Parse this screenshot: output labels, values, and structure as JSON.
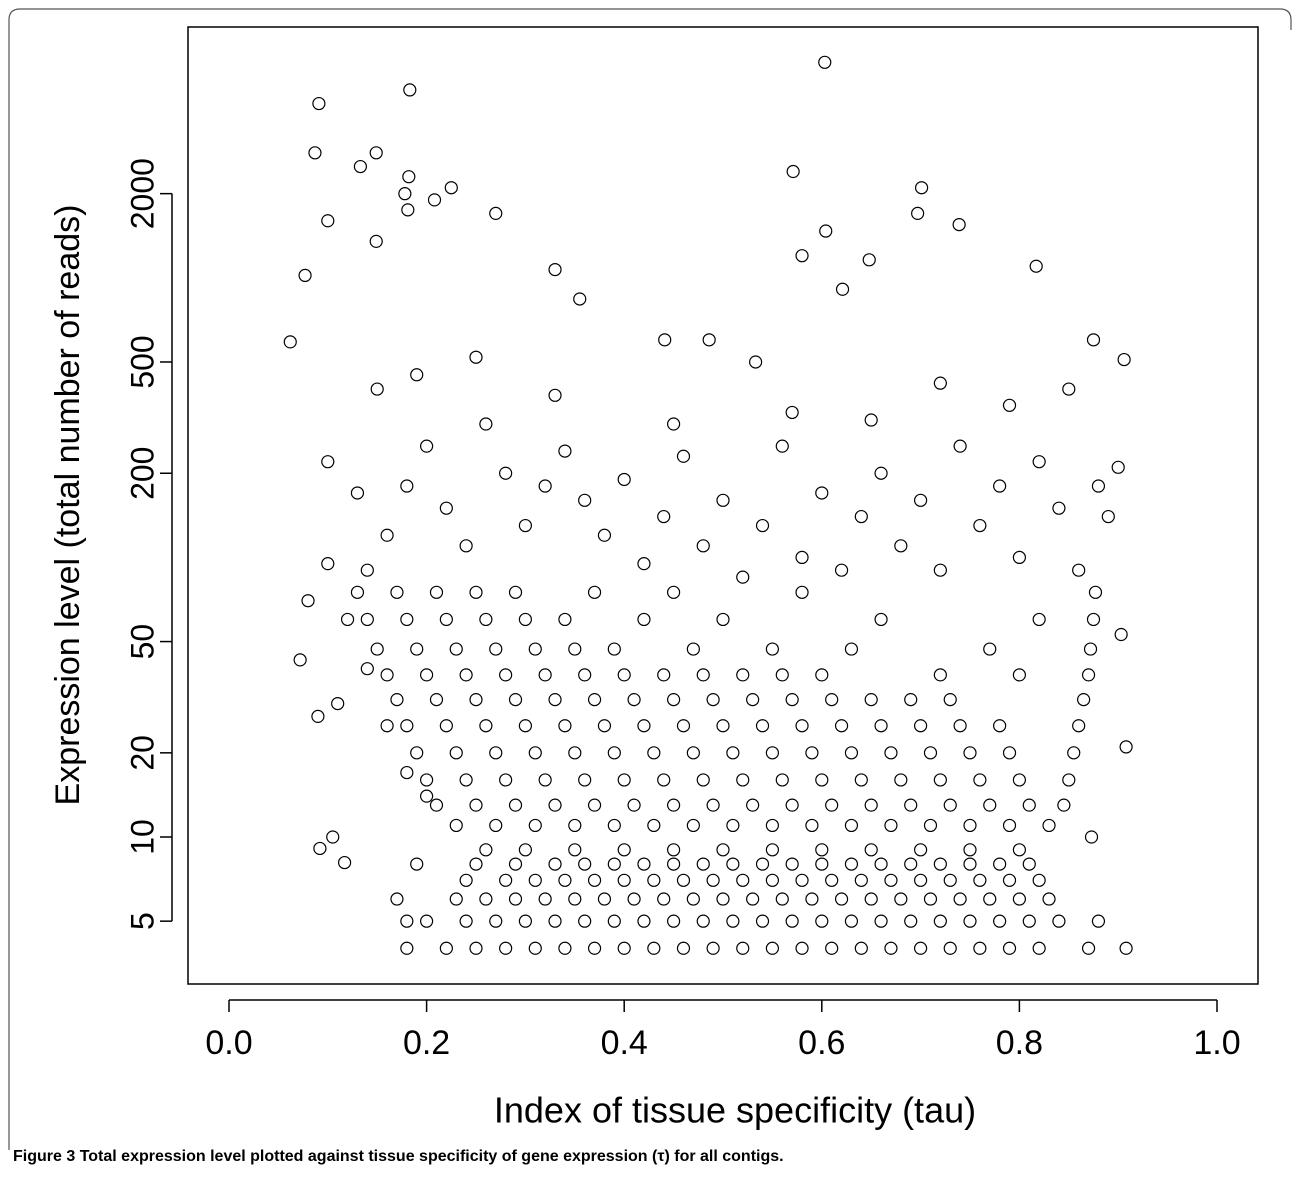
{
  "chart_data": {
    "type": "scatter",
    "x_label": "Index of tissue specificity (tau)",
    "y_label": "Expression level (total number of reads)",
    "xlim": [
      -0.0415,
      1.0415
    ],
    "xticks": [
      {
        "value": 0,
        "label": "0.0"
      },
      0.2,
      0.4,
      0.6,
      0.8,
      {
        "value": 1,
        "label": "1.0"
      }
    ],
    "ylim": [
      2.98,
      7890
    ],
    "yticks": [
      5,
      10,
      20,
      50,
      200,
      500,
      2000
    ],
    "yscale": "log",
    "color": "#000000",
    "x": [
      0.603,
      0.183,
      0.091,
      0.087,
      0.149,
      0.133,
      0.182,
      0.571,
      0.701,
      0.225,
      0.178,
      0.181,
      0.208,
      0.1,
      0.27,
      0.604,
      0.697,
      0.739,
      0.077,
      0.149,
      0.58,
      0.621,
      0.33,
      0.648,
      0.817,
      0.062,
      0.486,
      0.533,
      0.441,
      0.355,
      0.072,
      0.092,
      0.105,
      0.117,
      0.873,
      0.908,
      0.908,
      0.903,
      0.906,
      0.875,
      0.18,
      0.22,
      0.25,
      0.28,
      0.31,
      0.34,
      0.37,
      0.4,
      0.43,
      0.46,
      0.49,
      0.52,
      0.55,
      0.58,
      0.61,
      0.64,
      0.67,
      0.7,
      0.73,
      0.76,
      0.79,
      0.82,
      0.87,
      0.18,
      0.2,
      0.24,
      0.27,
      0.3,
      0.33,
      0.36,
      0.39,
      0.42,
      0.45,
      0.48,
      0.51,
      0.54,
      0.57,
      0.6,
      0.63,
      0.66,
      0.69,
      0.72,
      0.75,
      0.78,
      0.81,
      0.84,
      0.88,
      0.17,
      0.23,
      0.26,
      0.29,
      0.32,
      0.35,
      0.38,
      0.41,
      0.44,
      0.47,
      0.5,
      0.53,
      0.56,
      0.59,
      0.62,
      0.65,
      0.68,
      0.71,
      0.74,
      0.77,
      0.8,
      0.83,
      0.24,
      0.28,
      0.31,
      0.34,
      0.37,
      0.4,
      0.43,
      0.46,
      0.49,
      0.52,
      0.55,
      0.58,
      0.61,
      0.64,
      0.67,
      0.7,
      0.73,
      0.76,
      0.79,
      0.82,
      0.19,
      0.25,
      0.29,
      0.33,
      0.36,
      0.39,
      0.42,
      0.45,
      0.48,
      0.51,
      0.54,
      0.57,
      0.6,
      0.63,
      0.66,
      0.69,
      0.72,
      0.75,
      0.78,
      0.81,
      0.26,
      0.3,
      0.35,
      0.4,
      0.45,
      0.5,
      0.55,
      0.6,
      0.65,
      0.7,
      0.75,
      0.8,
      0.23,
      0.27,
      0.31,
      0.35,
      0.39,
      0.43,
      0.47,
      0.51,
      0.55,
      0.59,
      0.63,
      0.67,
      0.71,
      0.75,
      0.79,
      0.83,
      0.21,
      0.25,
      0.29,
      0.33,
      0.37,
      0.41,
      0.45,
      0.49,
      0.53,
      0.57,
      0.61,
      0.65,
      0.69,
      0.73,
      0.77,
      0.81,
      0.845,
      0.2,
      0.24,
      0.28,
      0.32,
      0.36,
      0.4,
      0.44,
      0.48,
      0.52,
      0.56,
      0.6,
      0.64,
      0.68,
      0.72,
      0.76,
      0.8,
      0.85,
      0.19,
      0.23,
      0.27,
      0.31,
      0.35,
      0.39,
      0.43,
      0.47,
      0.51,
      0.55,
      0.59,
      0.63,
      0.67,
      0.71,
      0.75,
      0.79,
      0.855,
      0.18,
      0.22,
      0.26,
      0.3,
      0.34,
      0.38,
      0.42,
      0.46,
      0.5,
      0.54,
      0.58,
      0.62,
      0.66,
      0.7,
      0.74,
      0.78,
      0.86,
      0.17,
      0.21,
      0.25,
      0.29,
      0.33,
      0.37,
      0.41,
      0.45,
      0.49,
      0.53,
      0.57,
      0.61,
      0.65,
      0.69,
      0.73,
      0.865,
      0.16,
      0.2,
      0.24,
      0.28,
      0.32,
      0.36,
      0.4,
      0.44,
      0.48,
      0.52,
      0.56,
      0.6,
      0.72,
      0.8,
      0.87,
      0.15,
      0.19,
      0.23,
      0.27,
      0.31,
      0.35,
      0.39,
      0.47,
      0.55,
      0.63,
      0.77,
      0.872,
      0.14,
      0.18,
      0.22,
      0.26,
      0.3,
      0.34,
      0.42,
      0.5,
      0.66,
      0.82,
      0.875,
      0.13,
      0.17,
      0.21,
      0.25,
      0.29,
      0.37,
      0.45,
      0.58,
      0.877,
      0.12,
      0.14,
      0.16,
      0.18,
      0.2,
      0.22,
      0.24,
      0.26,
      0.28,
      0.3,
      0.32,
      0.34,
      0.36,
      0.38,
      0.4,
      0.42,
      0.44,
      0.46,
      0.48,
      0.5,
      0.52,
      0.54,
      0.56,
      0.58,
      0.6,
      0.62,
      0.64,
      0.66,
      0.68,
      0.7,
      0.72,
      0.74,
      0.76,
      0.78,
      0.8,
      0.82,
      0.84,
      0.86,
      0.88,
      0.89,
      0.9,
      0.15,
      0.19,
      0.25,
      0.33,
      0.45,
      0.57,
      0.65,
      0.72,
      0.79,
      0.85,
      0.1,
      0.13,
      0.11,
      0.09,
      0.08,
      0.1,
      0.14,
      0.16,
      0.18,
      0.2
    ],
    "values": [
      5900,
      4700,
      4200,
      2800,
      2800,
      2500,
      2300,
      2400,
      2100,
      2100,
      2000,
      1750,
      1900,
      1600,
      1700,
      1470,
      1700,
      1550,
      1020,
      1350,
      1200,
      910,
      1070,
      1160,
      1100,
      590,
      600,
      500,
      600,
      840,
      43,
      9.1,
      10,
      8.1,
      10,
      21,
      4,
      53,
      510,
      600,
      4,
      4,
      4,
      4,
      4,
      4,
      4,
      4,
      4,
      4,
      4,
      4,
      4,
      4,
      4,
      4,
      4,
      4,
      4,
      4,
      4,
      4,
      4,
      5,
      5,
      5,
      5,
      5,
      5,
      5,
      5,
      5,
      5,
      5,
      5,
      5,
      5,
      5,
      5,
      5,
      5,
      5,
      5,
      5,
      5,
      5,
      5,
      6,
      6,
      6,
      6,
      6,
      6,
      6,
      6,
      6,
      6,
      6,
      6,
      6,
      6,
      6,
      6,
      6,
      6,
      6,
      6,
      6,
      6,
      7,
      7,
      7,
      7,
      7,
      7,
      7,
      7,
      7,
      7,
      7,
      7,
      7,
      7,
      7,
      7,
      7,
      7,
      7,
      7,
      8,
      8,
      8,
      8,
      8,
      8,
      8,
      8,
      8,
      8,
      8,
      8,
      8,
      8,
      8,
      8,
      8,
      8,
      8,
      8,
      9,
      9,
      9,
      9,
      9,
      9,
      9,
      9,
      9,
      9,
      9,
      9,
      11,
      11,
      11,
      11,
      11,
      11,
      11,
      11,
      11,
      11,
      11,
      11,
      11,
      11,
      11,
      11,
      13,
      13,
      13,
      13,
      13,
      13,
      13,
      13,
      13,
      13,
      13,
      13,
      13,
      13,
      13,
      13,
      13,
      16,
      16,
      16,
      16,
      16,
      16,
      16,
      16,
      16,
      16,
      16,
      16,
      16,
      16,
      16,
      16,
      16,
      20,
      20,
      20,
      20,
      20,
      20,
      20,
      20,
      20,
      20,
      20,
      20,
      20,
      20,
      20,
      20,
      20,
      25,
      25,
      25,
      25,
      25,
      25,
      25,
      25,
      25,
      25,
      25,
      25,
      25,
      25,
      25,
      25,
      25,
      31,
      31,
      31,
      31,
      31,
      31,
      31,
      31,
      31,
      31,
      31,
      31,
      31,
      31,
      31,
      31,
      38,
      38,
      38,
      38,
      38,
      38,
      38,
      38,
      38,
      38,
      38,
      38,
      38,
      38,
      38,
      47,
      47,
      47,
      47,
      47,
      47,
      47,
      47,
      47,
      47,
      47,
      47,
      60,
      60,
      60,
      60,
      60,
      60,
      60,
      60,
      60,
      60,
      60,
      75,
      75,
      75,
      75,
      75,
      75,
      75,
      75,
      75,
      60,
      90,
      120,
      180,
      250,
      150,
      110,
      300,
      200,
      130,
      180,
      240,
      160,
      120,
      190,
      95,
      140,
      230,
      110,
      160,
      85,
      130,
      250,
      100,
      170,
      90,
      140,
      200,
      110,
      160,
      90,
      250,
      130,
      180,
      100,
      220,
      150,
      90,
      180,
      140,
      210,
      400,
      450,
      520,
      380,
      300,
      330,
      310,
      420,
      350,
      400,
      220,
      170,
      30,
      27,
      70,
      95,
      40,
      25,
      17,
      14
    ]
  },
  "caption": {
    "label": "Figure 3",
    "text": "Total expression level plotted against tissue specificity of gene expression (τ) for all contigs."
  }
}
